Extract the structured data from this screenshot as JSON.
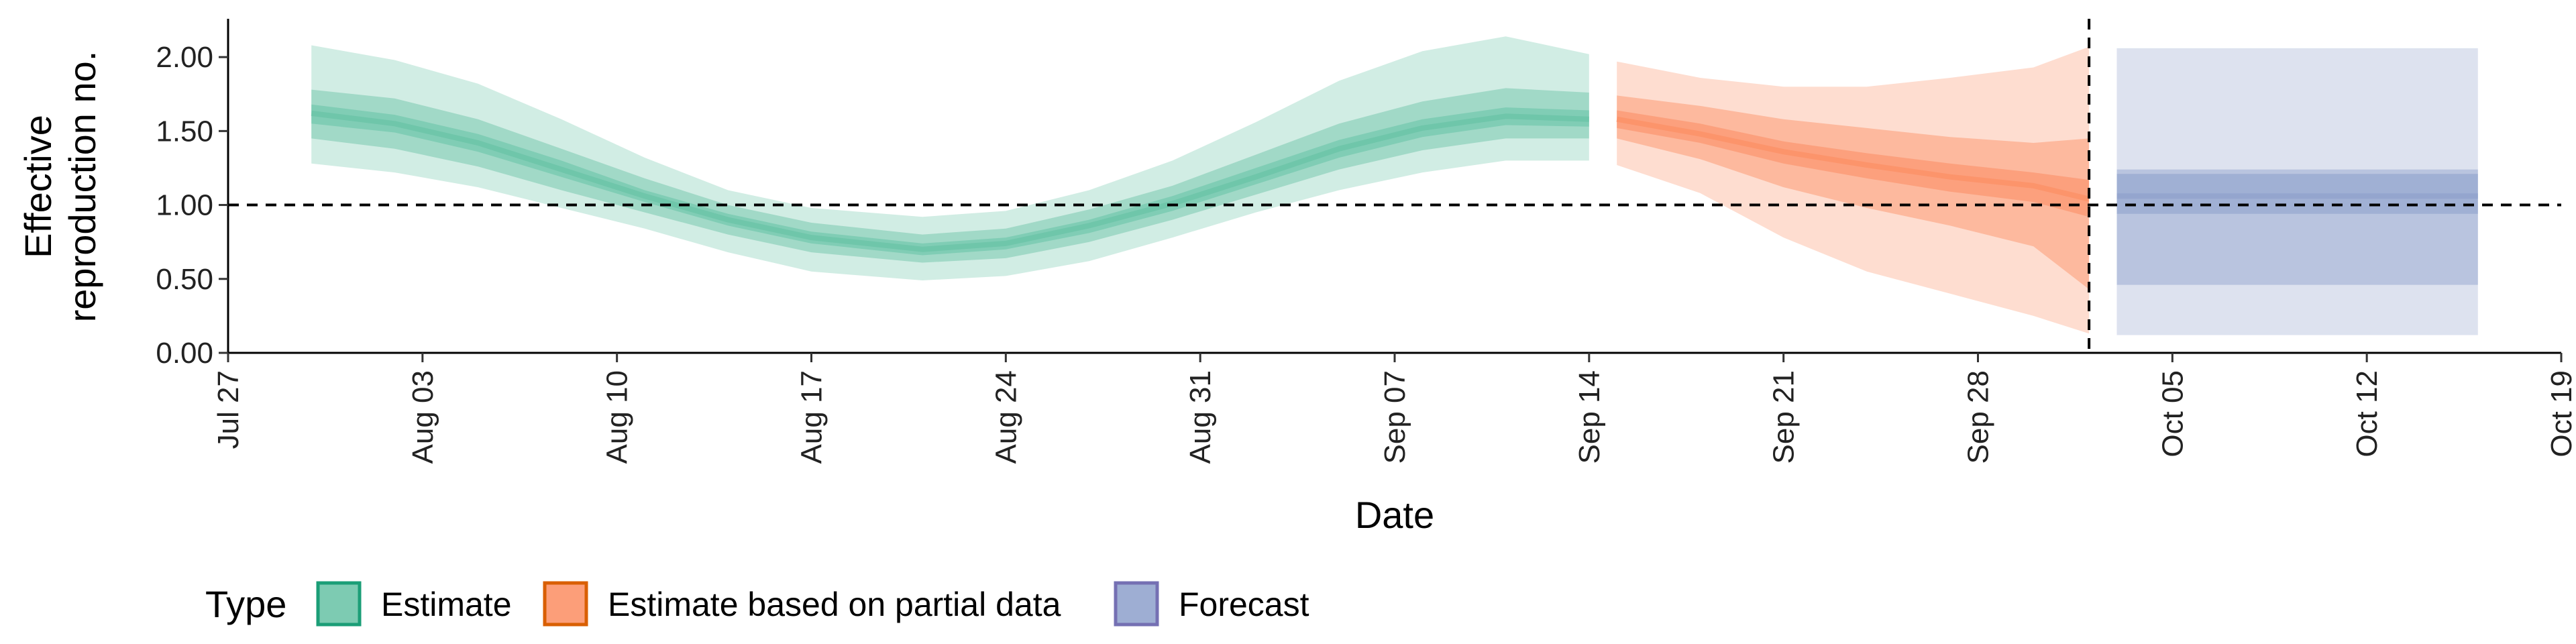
{
  "chart_data": {
    "type": "area",
    "xlabel": "Date",
    "ylabel": [
      "Effective",
      "reproduction no."
    ],
    "ylim": [
      0,
      2.25
    ],
    "xlim": [
      "2021-07-27",
      "2021-10-19"
    ],
    "x_ticks": [
      {
        "date": "2021-07-27",
        "label": "Jul 27"
      },
      {
        "date": "2021-08-03",
        "label": "Aug 03"
      },
      {
        "date": "2021-08-10",
        "label": "Aug 10"
      },
      {
        "date": "2021-08-17",
        "label": "Aug 17"
      },
      {
        "date": "2021-08-24",
        "label": "Aug 24"
      },
      {
        "date": "2021-08-31",
        "label": "Aug 31"
      },
      {
        "date": "2021-09-07",
        "label": "Sep 07"
      },
      {
        "date": "2021-09-14",
        "label": "Sep 14"
      },
      {
        "date": "2021-09-21",
        "label": "Sep 21"
      },
      {
        "date": "2021-09-28",
        "label": "Sep 28"
      },
      {
        "date": "2021-10-05",
        "label": "Oct 05"
      },
      {
        "date": "2021-10-12",
        "label": "Oct 12"
      },
      {
        "date": "2021-10-19",
        "label": "Oct 19"
      }
    ],
    "y_ticks": [
      {
        "value": 0,
        "label": "0.00"
      },
      {
        "value": 0.5,
        "label": "0.50"
      },
      {
        "value": 1,
        "label": "1.00"
      },
      {
        "value": 1.5,
        "label": "1.50"
      },
      {
        "value": 2,
        "label": "2.00"
      }
    ],
    "reference_lines": {
      "horizontal_y": 1.0,
      "vertical_date": "2021-10-02"
    },
    "grid": false,
    "legend": {
      "title": "Type",
      "position": "bottom-left"
    },
    "series": [
      {
        "name": "Estimate",
        "color": "#1b9e77",
        "fill": "#66c2a5",
        "points": [
          {
            "date": "2021-07-30",
            "lo90": 1.28,
            "lo50": 1.45,
            "lo20": 1.55,
            "median": 1.62,
            "hi20": 1.68,
            "hi50": 1.78,
            "hi90": 2.08
          },
          {
            "date": "2021-08-02",
            "lo90": 1.22,
            "lo50": 1.38,
            "lo20": 1.49,
            "median": 1.55,
            "hi20": 1.61,
            "hi50": 1.72,
            "hi90": 1.98
          },
          {
            "date": "2021-08-05",
            "lo90": 1.12,
            "lo50": 1.26,
            "lo20": 1.36,
            "median": 1.42,
            "hi20": 1.48,
            "hi50": 1.58,
            "hi90": 1.82
          },
          {
            "date": "2021-08-08",
            "lo90": 0.98,
            "lo50": 1.1,
            "lo20": 1.19,
            "median": 1.24,
            "hi20": 1.3,
            "hi50": 1.38,
            "hi90": 1.58
          },
          {
            "date": "2021-08-11",
            "lo90": 0.84,
            "lo50": 0.95,
            "lo20": 1.02,
            "median": 1.06,
            "hi20": 1.1,
            "hi50": 1.18,
            "hi90": 1.32
          },
          {
            "date": "2021-08-14",
            "lo90": 0.68,
            "lo50": 0.8,
            "lo20": 0.86,
            "median": 0.9,
            "hi20": 0.94,
            "hi50": 1.0,
            "hi90": 1.1
          },
          {
            "date": "2021-08-17",
            "lo90": 0.55,
            "lo50": 0.68,
            "lo20": 0.74,
            "median": 0.78,
            "hi20": 0.82,
            "hi50": 0.88,
            "hi90": 0.98
          },
          {
            "date": "2021-08-21",
            "lo90": 0.49,
            "lo50": 0.61,
            "lo20": 0.66,
            "median": 0.7,
            "hi20": 0.74,
            "hi50": 0.8,
            "hi90": 0.92
          },
          {
            "date": "2021-08-24",
            "lo90": 0.52,
            "lo50": 0.64,
            "lo20": 0.7,
            "median": 0.74,
            "hi20": 0.78,
            "hi50": 0.84,
            "hi90": 0.96
          },
          {
            "date": "2021-08-27",
            "lo90": 0.62,
            "lo50": 0.75,
            "lo20": 0.81,
            "median": 0.86,
            "hi20": 0.9,
            "hi50": 0.97,
            "hi90": 1.1
          },
          {
            "date": "2021-08-30",
            "lo90": 0.78,
            "lo50": 0.9,
            "lo20": 0.96,
            "median": 1.01,
            "hi20": 1.06,
            "hi50": 1.13,
            "hi90": 1.3
          },
          {
            "date": "2021-09-02",
            "lo90": 0.95,
            "lo50": 1.07,
            "lo20": 1.14,
            "median": 1.19,
            "hi20": 1.25,
            "hi50": 1.34,
            "hi90": 1.56
          },
          {
            "date": "2021-09-05",
            "lo90": 1.1,
            "lo50": 1.24,
            "lo20": 1.32,
            "median": 1.38,
            "hi20": 1.44,
            "hi50": 1.55,
            "hi90": 1.84
          },
          {
            "date": "2021-09-08",
            "lo90": 1.22,
            "lo50": 1.37,
            "lo20": 1.46,
            "median": 1.52,
            "hi20": 1.58,
            "hi50": 1.7,
            "hi90": 2.04
          },
          {
            "date": "2021-09-11",
            "lo90": 1.3,
            "lo50": 1.45,
            "lo20": 1.54,
            "median": 1.6,
            "hi20": 1.66,
            "hi50": 1.79,
            "hi90": 2.14
          },
          {
            "date": "2021-09-14",
            "lo90": 1.3,
            "lo50": 1.45,
            "lo20": 1.53,
            "median": 1.58,
            "hi20": 1.64,
            "hi50": 1.76,
            "hi90": 2.02
          }
        ]
      },
      {
        "name": "Estimate based on partial data",
        "color": "#d95f02",
        "fill": "#fc8d62",
        "points": [
          {
            "date": "2021-09-15",
            "lo90": 1.27,
            "lo50": 1.45,
            "lo20": 1.52,
            "median": 1.58,
            "hi20": 1.64,
            "hi50": 1.74,
            "hi90": 1.97
          },
          {
            "date": "2021-09-18",
            "lo90": 1.08,
            "lo50": 1.31,
            "lo20": 1.42,
            "median": 1.48,
            "hi20": 1.55,
            "hi50": 1.67,
            "hi90": 1.86
          },
          {
            "date": "2021-09-21",
            "lo90": 0.78,
            "lo50": 1.12,
            "lo20": 1.28,
            "median": 1.36,
            "hi20": 1.43,
            "hi50": 1.58,
            "hi90": 1.8
          },
          {
            "date": "2021-09-24",
            "lo90": 0.55,
            "lo50": 0.98,
            "lo20": 1.18,
            "median": 1.27,
            "hi20": 1.35,
            "hi50": 1.52,
            "hi90": 1.8
          },
          {
            "date": "2021-09-27",
            "lo90": 0.4,
            "lo50": 0.86,
            "lo20": 1.09,
            "median": 1.19,
            "hi20": 1.28,
            "hi50": 1.46,
            "hi90": 1.86
          },
          {
            "date": "2021-09-30",
            "lo90": 0.25,
            "lo50": 0.72,
            "lo20": 1.02,
            "median": 1.13,
            "hi20": 1.22,
            "hi50": 1.42,
            "hi90": 1.93
          },
          {
            "date": "2021-10-02",
            "lo90": 0.13,
            "lo50": 0.43,
            "lo20": 0.92,
            "median": 1.04,
            "hi20": 1.17,
            "hi50": 1.45,
            "hi90": 2.07
          }
        ]
      },
      {
        "name": "Forecast",
        "color": "#7570b3",
        "fill": "#8da0cb",
        "points": [
          {
            "date": "2021-10-03",
            "lo90": 0.12,
            "lo50": 0.46,
            "lo20": 0.94,
            "median": 1.06,
            "hi20": 1.21,
            "hi50": 1.24,
            "hi90": 2.06
          },
          {
            "date": "2021-10-16",
            "lo90": 0.12,
            "lo50": 0.46,
            "lo20": 0.94,
            "median": 1.06,
            "hi20": 1.21,
            "hi50": 1.24,
            "hi90": 2.06
          }
        ]
      }
    ]
  }
}
